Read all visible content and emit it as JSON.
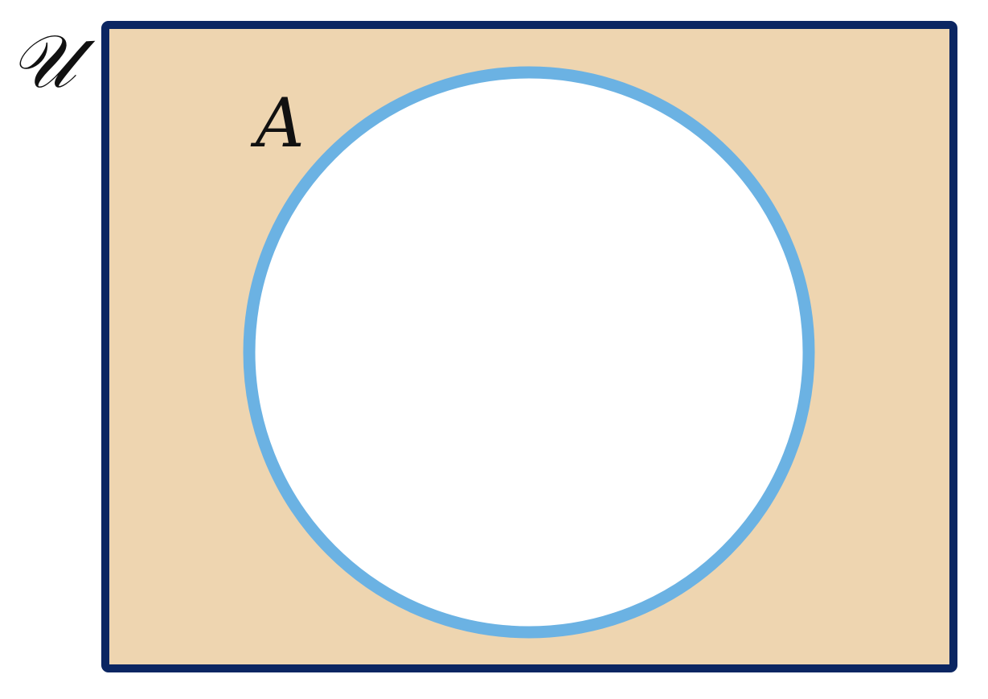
{
  "diagram": {
    "type": "venn",
    "universe": {
      "label": "𝒰",
      "fill_color": "#EED5B0",
      "border_color": "#0B2662"
    },
    "sets": [
      {
        "label": "A",
        "fill_color": "#FFFFFF",
        "border_color": "#6BB2E3"
      }
    ],
    "shaded_region": "complement of A"
  }
}
